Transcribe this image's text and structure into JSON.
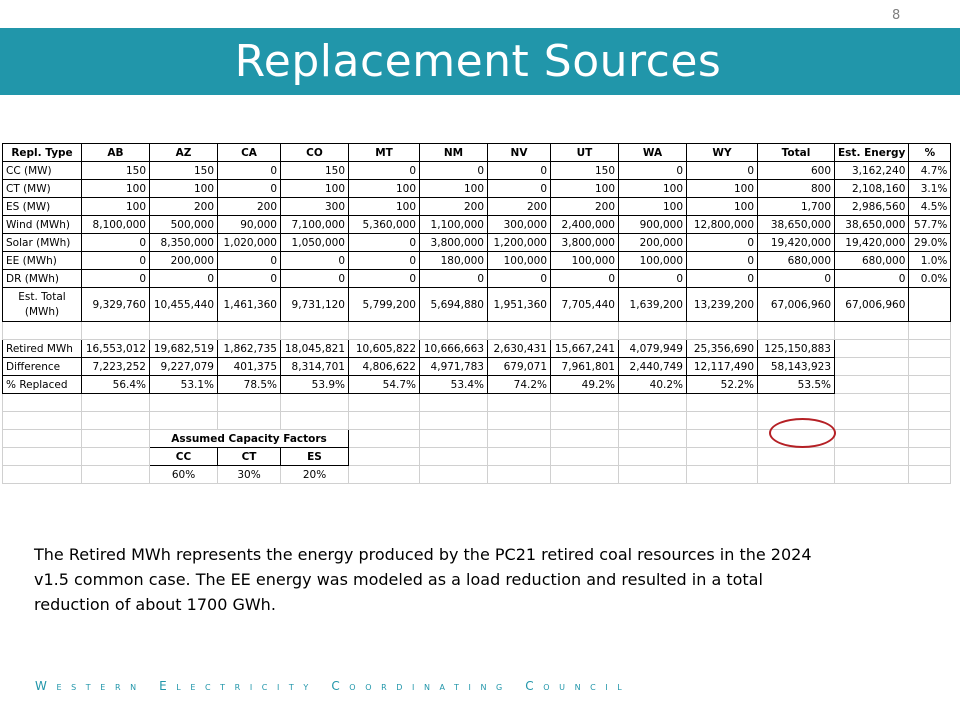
{
  "slide": {
    "number": "8",
    "title": "Replacement Sources"
  },
  "table": {
    "headers": [
      "Repl. Type",
      "AB",
      "AZ",
      "CA",
      "CO",
      "MT",
      "NM",
      "NV",
      "UT",
      "WA",
      "WY",
      "Total",
      "Est. Energy",
      "%"
    ],
    "rows": [
      [
        "CC (MW)",
        "150",
        "150",
        "0",
        "150",
        "0",
        "0",
        "0",
        "150",
        "0",
        "0",
        "600",
        "3,162,240",
        "4.7%"
      ],
      [
        "CT (MW)",
        "100",
        "100",
        "0",
        "100",
        "100",
        "100",
        "0",
        "100",
        "100",
        "100",
        "800",
        "2,108,160",
        "3.1%"
      ],
      [
        "ES (MW)",
        "100",
        "200",
        "200",
        "300",
        "100",
        "200",
        "200",
        "200",
        "100",
        "100",
        "1,700",
        "2,986,560",
        "4.5%"
      ],
      [
        "Wind (MWh)",
        "8,100,000",
        "500,000",
        "90,000",
        "7,100,000",
        "5,360,000",
        "1,100,000",
        "300,000",
        "2,400,000",
        "900,000",
        "12,800,000",
        "38,650,000",
        "38,650,000",
        "57.7%"
      ],
      [
        "Solar (MWh)",
        "0",
        "8,350,000",
        "1,020,000",
        "1,050,000",
        "0",
        "3,800,000",
        "1,200,000",
        "3,800,000",
        "200,000",
        "0",
        "19,420,000",
        "19,420,000",
        "29.0%"
      ],
      [
        "EE (MWh)",
        "0",
        "200,000",
        "0",
        "0",
        "0",
        "180,000",
        "100,000",
        "100,000",
        "100,000",
        "0",
        "680,000",
        "680,000",
        "1.0%"
      ],
      [
        "DR (MWh)",
        "0",
        "0",
        "0",
        "0",
        "0",
        "0",
        "0",
        "0",
        "0",
        "0",
        "0",
        "0",
        "0.0%"
      ]
    ],
    "total_row": [
      "Est. Total (MWh)",
      "9,329,760",
      "10,455,440",
      "1,461,360",
      "9,731,120",
      "5,799,200",
      "5,694,880",
      "1,951,360",
      "7,705,440",
      "1,639,200",
      "13,239,200",
      "67,006,960",
      "67,006,960",
      ""
    ],
    "summary_rows": [
      [
        "Retired MWh",
        "16,553,012",
        "19,682,519",
        "1,862,735",
        "18,045,821",
        "10,605,822",
        "10,666,663",
        "2,630,431",
        "15,667,241",
        "4,079,949",
        "25,356,690",
        "125,150,883"
      ],
      [
        "Difference",
        "7,223,252",
        "9,227,079",
        "401,375",
        "8,314,701",
        "4,806,622",
        "4,971,783",
        "679,071",
        "7,961,801",
        "2,440,749",
        "12,117,490",
        "58,143,923"
      ],
      [
        "% Replaced",
        "56.4%",
        "53.1%",
        "78.5%",
        "53.9%",
        "54.7%",
        "53.4%",
        "74.2%",
        "49.2%",
        "40.2%",
        "52.2%",
        "53.5%"
      ]
    ],
    "capacity_factors": {
      "title": "Assumed Capacity Factors",
      "headers": [
        "CC",
        "CT",
        "ES"
      ],
      "values": [
        "60%",
        "30%",
        "20%"
      ]
    }
  },
  "note": "The Retired MWh represents the energy produced by the PC21 retired coal resources in the 2024 v1.5 common case. The EE energy was modeled as a load reduction and resulted in a total reduction of about 1700 GWh.",
  "footer": "Western Electricity Coordinating Council",
  "colors": {
    "title_bar": "#2196aa",
    "highlight_circle": "#b52025",
    "footer": "#2196aa"
  }
}
